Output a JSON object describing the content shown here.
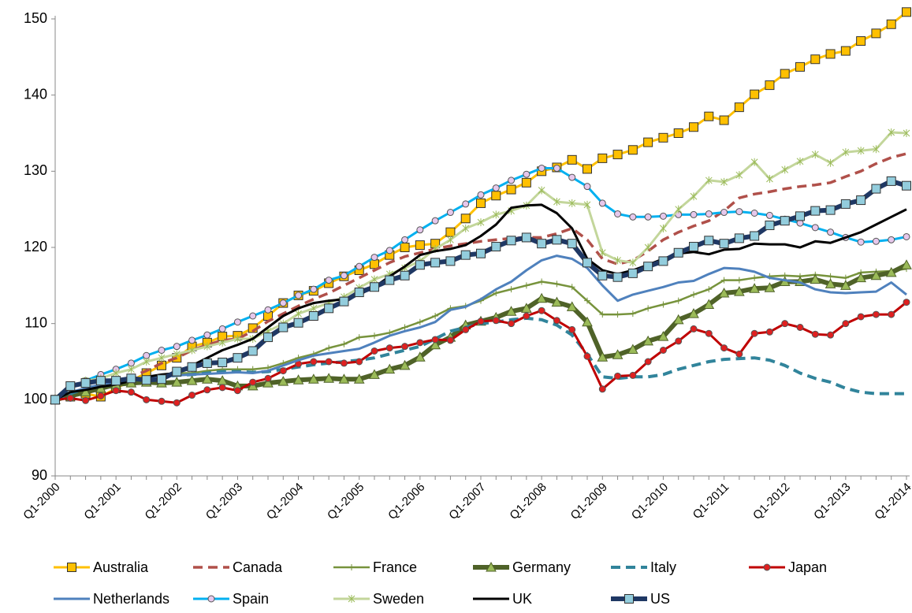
{
  "chart_data": {
    "type": "line",
    "categories": [
      "Q1-2000",
      null,
      null,
      null,
      "Q1-2001",
      null,
      null,
      null,
      "Q1-2002",
      null,
      null,
      null,
      "Q1-2003",
      null,
      null,
      null,
      "Q1-2004",
      null,
      null,
      null,
      "Q1-2005",
      null,
      null,
      null,
      "Q1-2006",
      null,
      null,
      null,
      "Q1-2007",
      null,
      null,
      null,
      "Q1-2008",
      null,
      null,
      null,
      "Q1-2009",
      null,
      null,
      null,
      "Q1-2010",
      null,
      null,
      null,
      "Q1-2011",
      null,
      null,
      null,
      "Q1-2012",
      null,
      null,
      null,
      "Q1-2013",
      null,
      null,
      null,
      "Q1-2014"
    ],
    "ylim": [
      90,
      150
    ],
    "yticks": [
      90,
      100,
      110,
      120,
      130,
      140,
      150
    ],
    "grid": false,
    "series": [
      {
        "name": "Australia",
        "color": "#FFC000",
        "marker": "square",
        "marker_color": "#FFC000",
        "line_width": 3,
        "dashed": false,
        "values": [
          100,
          100.4,
          100.8,
          100.4,
          101.5,
          102.5,
          103.5,
          104.5,
          105.5,
          107,
          107.5,
          108.3,
          108.4,
          109.4,
          111,
          112.7,
          113.7,
          114.3,
          115.3,
          116.2,
          117,
          117.8,
          119,
          120,
          120.3,
          120.5,
          122,
          123.8,
          125.8,
          126.8,
          127.6,
          128.5,
          130,
          130.5,
          131.5,
          130.3,
          131.7,
          132.2,
          132.8,
          133.8,
          134.4,
          135,
          135.8,
          137.2,
          136.7,
          138.4,
          140.1,
          141.3,
          142.8,
          143.7,
          144.7,
          145.4,
          145.8,
          147.1,
          148.1,
          149.3,
          150.9
        ]
      },
      {
        "name": "Canada",
        "color": "#B0504A",
        "marker": "none",
        "marker_color": "#B0504A",
        "line_width": 3.5,
        "dashed": true,
        "values": [
          100,
          100.8,
          101.5,
          102,
          102.5,
          103,
          103.8,
          104.8,
          105.5,
          106.5,
          107.2,
          107.8,
          108,
          109,
          110.3,
          111.3,
          112.3,
          113.2,
          114,
          115,
          116,
          117,
          118,
          118.8,
          119.3,
          119.8,
          120.2,
          120.5,
          120.8,
          121,
          121.2,
          121.3,
          121.3,
          121.8,
          122.5,
          121,
          118.5,
          117.8,
          118.3,
          119.5,
          121,
          122,
          122.8,
          123.5,
          124.8,
          126.5,
          127,
          127.3,
          127.7,
          128,
          128.2,
          128.5,
          129.3,
          130,
          131,
          131.8,
          132.3
        ]
      },
      {
        "name": "France",
        "color": "#77933C",
        "marker": "plus",
        "marker_color": "#77933C",
        "line_width": 2.5,
        "dashed": false,
        "values": [
          100,
          100.5,
          101,
          101.5,
          102,
          102.3,
          102.5,
          103,
          103.5,
          103.5,
          103.8,
          104,
          104,
          104,
          104.2,
          104.8,
          105.5,
          106,
          106.8,
          107.3,
          108.2,
          108.4,
          108.8,
          109.5,
          110.2,
          111,
          112,
          112.3,
          113,
          114,
          114.5,
          115,
          115.5,
          115.2,
          114.8,
          113,
          111.2,
          111.2,
          111.3,
          112,
          112.5,
          113,
          113.8,
          114.5,
          115.7,
          115.7,
          116,
          116.2,
          116.3,
          116.2,
          116.4,
          116.2,
          116,
          116.7,
          116.8,
          116.9,
          117.2
        ]
      },
      {
        "name": "Germany",
        "color": "#4F6228",
        "marker": "triangle",
        "marker_color": "#9BBB59",
        "line_width": 6,
        "dashed": false,
        "values": [
          100,
          100.5,
          101,
          101.5,
          102,
          102.2,
          102.3,
          102.2,
          102.3,
          102.5,
          102.7,
          102.5,
          101.8,
          101.8,
          102.2,
          102.4,
          102.6,
          102.7,
          102.8,
          102.7,
          102.7,
          103.3,
          104,
          104.5,
          105.6,
          107.2,
          108.2,
          109.8,
          110.3,
          110.8,
          111.6,
          112,
          113.3,
          112.8,
          112.2,
          110.2,
          105.6,
          105.9,
          106.6,
          107.7,
          108.3,
          110.5,
          111.3,
          112.5,
          114,
          114.2,
          114.6,
          114.7,
          115.5,
          115.5,
          115.8,
          115.2,
          115,
          116,
          116.3,
          116.7,
          117.7
        ]
      },
      {
        "name": "Italy",
        "color": "#31849B",
        "marker": "none",
        "marker_color": "#31849B",
        "line_width": 4,
        "dashed": true,
        "values": [
          100,
          100.8,
          101.5,
          102,
          102.3,
          102.5,
          102.8,
          103,
          103.2,
          103.3,
          103.5,
          103.7,
          103.7,
          103.6,
          103.7,
          104,
          104.3,
          104.6,
          104.8,
          105,
          105.2,
          105.5,
          106,
          106.5,
          107,
          108,
          109,
          109.5,
          110,
          110.2,
          110.5,
          110.7,
          110.5,
          109.8,
          108.5,
          106,
          103,
          102.8,
          103,
          103,
          103.3,
          104,
          104.5,
          105,
          105.3,
          105.4,
          105.5,
          105.2,
          104.5,
          103.5,
          102.8,
          102.3,
          101.5,
          101,
          100.8,
          100.8,
          100.8
        ]
      },
      {
        "name": "Japan",
        "color": "#C00000",
        "marker": "circle",
        "marker_color": "#E02020",
        "line_width": 3,
        "dashed": false,
        "values": [
          100,
          100.2,
          99.9,
          100.5,
          101.2,
          101,
          100,
          99.8,
          99.6,
          100.6,
          101.3,
          101.6,
          101.2,
          102.3,
          102.8,
          103.8,
          104.7,
          105,
          105,
          104.8,
          105,
          106.4,
          106.8,
          107,
          107.5,
          107.9,
          107.8,
          109.2,
          110.3,
          110.4,
          110,
          111,
          111.7,
          110.4,
          109.2,
          105.7,
          101.4,
          103.1,
          103.2,
          105,
          106.5,
          107.7,
          109.3,
          108.7,
          106.8,
          106,
          108.7,
          108.9,
          110,
          109.5,
          108.6,
          108.5,
          110,
          110.9,
          111.2,
          111.2,
          112.8
        ]
      },
      {
        "name": "Netherlands",
        "color": "#4F81BD",
        "marker": "none",
        "marker_color": "#4F81BD",
        "line_width": 3,
        "dashed": false,
        "values": [
          100,
          101,
          101.5,
          102,
          102.3,
          102.5,
          102.8,
          103,
          103.2,
          103.3,
          103.4,
          103.5,
          103.6,
          103.5,
          103.8,
          104.5,
          105.2,
          105.8,
          106.1,
          106.4,
          106.7,
          107.5,
          108.4,
          109,
          109.5,
          110.2,
          111.8,
          112.2,
          113.2,
          114.5,
          115.5,
          117,
          118.3,
          118.9,
          118.5,
          117.3,
          115,
          113,
          113.8,
          114.3,
          114.8,
          115.4,
          115.6,
          116.5,
          117.3,
          117.2,
          116.8,
          116,
          115.7,
          115.4,
          114.5,
          114.1,
          114,
          114.1,
          114.2,
          115.4,
          113.8
        ]
      },
      {
        "name": "Spain",
        "color": "#00B0F0",
        "marker": "circle",
        "marker_color": "#E6C8EC",
        "line_width": 3,
        "dashed": false,
        "values": [
          100,
          101.5,
          102.5,
          103.3,
          104,
          104.8,
          105.8,
          106.5,
          107,
          107.8,
          108.5,
          109.3,
          110.2,
          111,
          111.8,
          112.7,
          113.7,
          114.5,
          115.7,
          116.3,
          117.5,
          118.7,
          119.6,
          121,
          122.3,
          123.5,
          124.6,
          125.7,
          126.9,
          127.8,
          128.8,
          129.6,
          130.4,
          130.4,
          129.2,
          128,
          125.8,
          124.4,
          124,
          124,
          124.1,
          124.3,
          124.3,
          124.4,
          124.6,
          124.7,
          124.5,
          124.2,
          123.7,
          123.2,
          122.6,
          122,
          121.3,
          120.7,
          120.8,
          121,
          121.4
        ]
      },
      {
        "name": "Sweden",
        "color": "#C3D69B",
        "marker": "star",
        "marker_color": "#9BBB59",
        "line_width": 3,
        "dashed": false,
        "values": [
          100,
          101.5,
          102.5,
          102.8,
          103.5,
          104,
          105,
          105.5,
          106,
          106.5,
          107,
          107.5,
          108,
          108,
          109,
          110,
          111.3,
          112,
          112.7,
          113.5,
          114.7,
          115.8,
          116.5,
          117.3,
          118.2,
          119.8,
          121,
          122.5,
          123.3,
          124.3,
          124.8,
          125.5,
          127.5,
          126,
          125.8,
          125.6,
          119.3,
          118.3,
          118,
          120,
          122.5,
          125,
          126.7,
          128.8,
          128.6,
          129.5,
          131.2,
          129,
          130.2,
          131.3,
          132.2,
          131.1,
          132.5,
          132.7,
          132.9,
          135.1,
          135
        ]
      },
      {
        "name": "UK",
        "color": "#000000",
        "marker": "none",
        "marker_color": "#000000",
        "line_width": 3,
        "dashed": false,
        "values": [
          100,
          101,
          101.3,
          101.7,
          102,
          102.5,
          103,
          103.3,
          103.5,
          104.5,
          105.5,
          106.5,
          107.2,
          108,
          109.5,
          111,
          112,
          112.7,
          113,
          113.2,
          113.8,
          114.8,
          116.2,
          117.5,
          119,
          119.5,
          119.8,
          120.3,
          121.5,
          123,
          125.2,
          125.5,
          125.6,
          124.5,
          122.5,
          118.5,
          117,
          116.5,
          117,
          117.7,
          118.5,
          119.2,
          119.4,
          119.1,
          119.7,
          119.8,
          120.5,
          120.4,
          120.4,
          120,
          120.8,
          120.6,
          121.3,
          122,
          123,
          124,
          125
        ]
      },
      {
        "name": "US",
        "color": "#1F3864",
        "marker": "square",
        "marker_color": "#93CDDD",
        "line_width": 6,
        "dashed": false,
        "values": [
          100,
          101.8,
          102.2,
          102.5,
          102.5,
          102.8,
          102.6,
          102.7,
          103.7,
          104.3,
          104.8,
          104.9,
          105.5,
          106.4,
          108.2,
          109.5,
          110.1,
          111,
          112,
          112.9,
          114.1,
          114.8,
          115.7,
          116.3,
          117.7,
          118,
          118.2,
          119,
          119.2,
          120.1,
          120.9,
          121.3,
          120.5,
          121,
          120.5,
          118,
          116.3,
          116.1,
          116.6,
          117.5,
          118.2,
          119.3,
          120.1,
          120.9,
          120.5,
          121.2,
          121.5,
          122.9,
          123.5,
          124.1,
          124.8,
          124.9,
          125.7,
          126.2,
          127.7,
          128.7,
          128.1
        ]
      }
    ]
  }
}
